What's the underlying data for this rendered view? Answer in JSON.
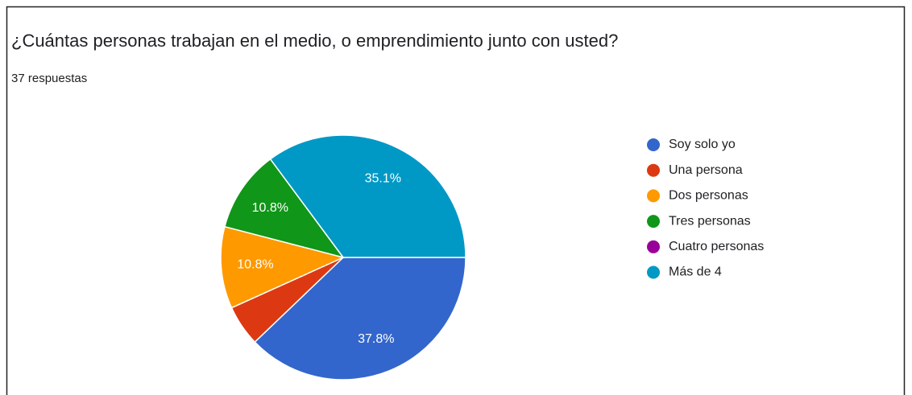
{
  "chart_data": {
    "type": "pie",
    "title": "¿Cuántas personas trabajan en el medio, o emprendimiento junto con usted?",
    "subtitle": "37 respuestas",
    "categories": [
      "Soy solo yo",
      "Una persona",
      "Dos personas",
      "Tres personas",
      "Cuatro personas",
      "Más de 4"
    ],
    "values": [
      37.8,
      5.4,
      10.8,
      10.8,
      0,
      35.1
    ],
    "value_labels": [
      "37.8%",
      null,
      "10.8%",
      "10.8%",
      null,
      "35.1%"
    ],
    "colors": [
      "#3366cc",
      "#dc3912",
      "#ff9900",
      "#109618",
      "#990099",
      "#0099c6"
    ],
    "legend": "right"
  }
}
